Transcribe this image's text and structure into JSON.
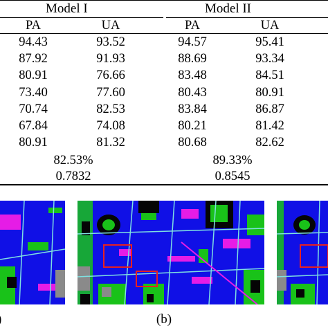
{
  "table": {
    "model_headers": [
      "Model I",
      "Model II"
    ],
    "column_headers": [
      "PA",
      "UA",
      "PA",
      "UA"
    ],
    "rows": [
      [
        "94.43",
        "93.52",
        "94.57",
        "95.41"
      ],
      [
        "87.92",
        "91.93",
        "88.69",
        "93.34"
      ],
      [
        "80.91",
        "76.66",
        "83.48",
        "84.51"
      ],
      [
        "73.40",
        "77.60",
        "80.43",
        "80.91"
      ],
      [
        "70.74",
        "82.53",
        "83.84",
        "86.87"
      ],
      [
        "67.84",
        "74.08",
        "80.21",
        "81.42"
      ],
      [
        "80.91",
        "81.32",
        "80.68",
        "82.62"
      ]
    ],
    "overall_accuracy": [
      "82.53%",
      "89.33%"
    ],
    "kappa": [
      "0.7832",
      "0.8545"
    ]
  },
  "figure": {
    "caption": "(b)",
    "left_caption_fragment": ")",
    "map_colors": {
      "background": "#1010e6",
      "vegetation": "#19c219",
      "built": "#e61ce6",
      "dark": "#050505",
      "gray": "#8a8a8a",
      "roads": "#7fe0e0",
      "highlight_box": "#e82020"
    }
  }
}
